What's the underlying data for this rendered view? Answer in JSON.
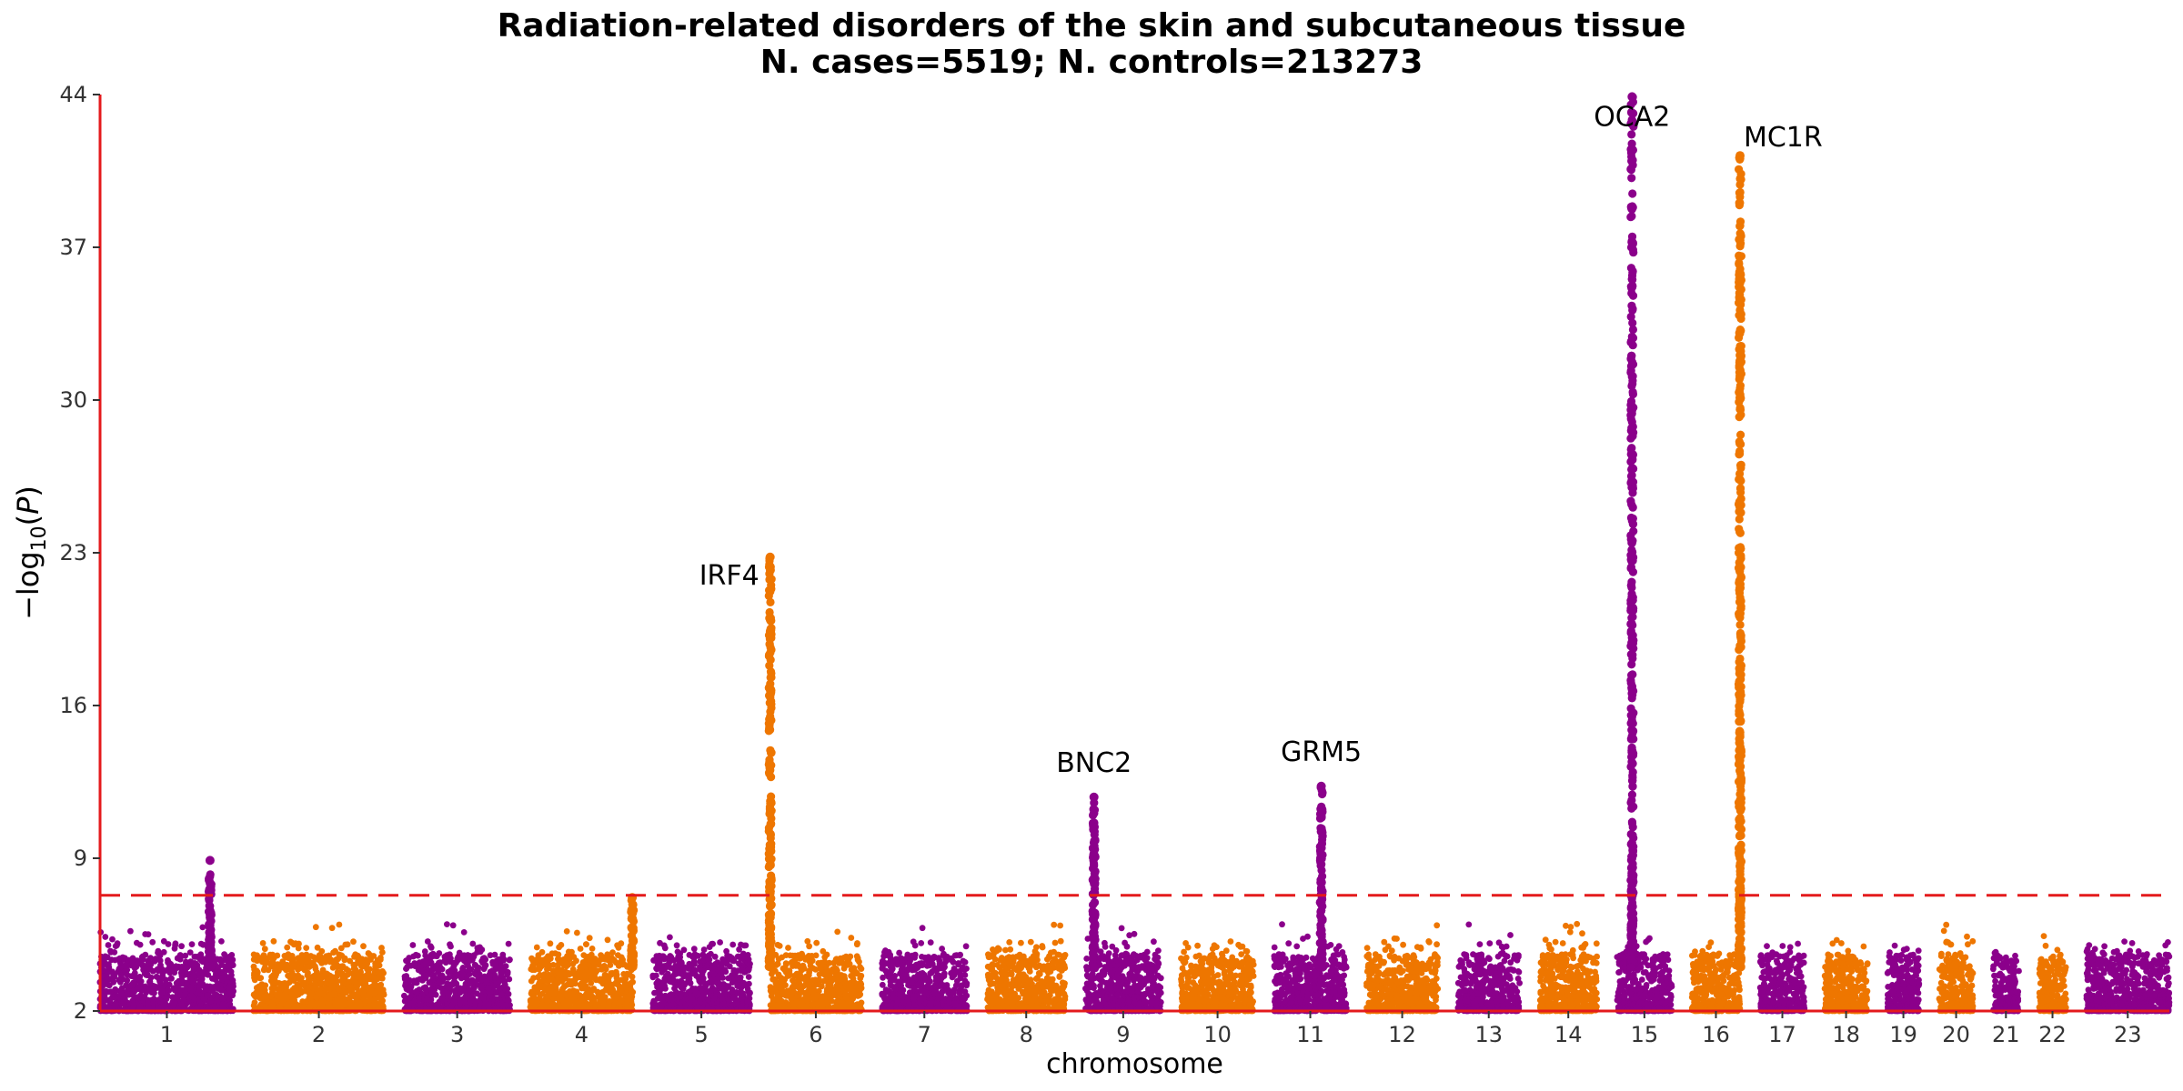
{
  "chart_data": {
    "type": "scatter",
    "subtype": "manhattan",
    "title": "Radiation-related disorders of the skin and subcutaneous tissue",
    "subtitle": "N. cases=5519; N. controls=213273",
    "xlabel": "chromosome",
    "ylabel": "−log10(P)",
    "ylim": [
      2,
      44
    ],
    "yticks": [
      2,
      9,
      16,
      23,
      30,
      37,
      44
    ],
    "significance_threshold": 7.3,
    "grid": false,
    "colors": {
      "odd": "#8B008B",
      "even": "#EE7600",
      "axis": "#E41A1C",
      "threshold": "#E41A1C"
    },
    "chromosomes": [
      {
        "label": "1",
        "size": 249
      },
      {
        "label": "2",
        "size": 243
      },
      {
        "label": "3",
        "size": 198
      },
      {
        "label": "4",
        "size": 191
      },
      {
        "label": "5",
        "size": 181
      },
      {
        "label": "6",
        "size": 171
      },
      {
        "label": "7",
        "size": 159
      },
      {
        "label": "8",
        "size": 146
      },
      {
        "label": "9",
        "size": 141
      },
      {
        "label": "10",
        "size": 136
      },
      {
        "label": "11",
        "size": 135
      },
      {
        "label": "12",
        "size": 133
      },
      {
        "label": "13",
        "size": 115
      },
      {
        "label": "14",
        "size": 107
      },
      {
        "label": "15",
        "size": 102
      },
      {
        "label": "16",
        "size": 90
      },
      {
        "label": "17",
        "size": 83
      },
      {
        "label": "18",
        "size": 80
      },
      {
        "label": "19",
        "size": 59
      },
      {
        "label": "20",
        "size": 63
      },
      {
        "label": "21",
        "size": 48
      },
      {
        "label": "22",
        "size": 51
      },
      {
        "label": "23",
        "size": 155
      }
    ],
    "peaks": [
      {
        "chrom": "1",
        "pos": 205,
        "max": 8.9,
        "gene": ""
      },
      {
        "chrom": "4",
        "pos": 190,
        "max": 7.2,
        "gene": ""
      },
      {
        "chrom": "6",
        "pos": 0.4,
        "max": 22.8,
        "gene": "IRF4"
      },
      {
        "chrom": "9",
        "pos": 16,
        "max": 11.8,
        "gene": "BNC2"
      },
      {
        "chrom": "11",
        "pos": 88,
        "max": 12.3,
        "gene": "GRM5"
      },
      {
        "chrom": "15",
        "pos": 28,
        "max": 43.9,
        "gene": "OCA2"
      },
      {
        "chrom": "16",
        "pos": 89.9,
        "max": 41.2,
        "gene": "MC1R"
      }
    ],
    "gene_labels": [
      "IRF4",
      "BNC2",
      "GRM5",
      "OCA2",
      "MC1R"
    ]
  }
}
